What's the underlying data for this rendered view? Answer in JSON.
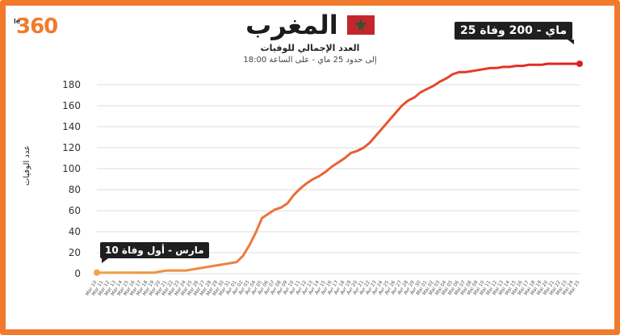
{
  "brand": {
    "logo": "360",
    "logo_prefix": "le"
  },
  "header": {
    "country": "المغرب",
    "subtitle": "العدد الإجمالي للوفيات",
    "datetime": "إلى حدود 25 ماي - على الساعة 18:00"
  },
  "colors": {
    "frame": "#f27a2c",
    "line_start": "#f3a24a",
    "line_end": "#e01f1f",
    "grid": "#dddddd",
    "callout_bg": "#1f1f1f",
    "flag_red": "#c1272d",
    "flag_star": "#006233"
  },
  "annotations": {
    "first": "10 مارس - أول وفاة",
    "last": "25 ماي - 200 وفاة"
  },
  "chart_data": {
    "type": "line",
    "title": "المغرب",
    "subtitle": "العدد الإجمالي للوفيات",
    "ylabel": "عدد الوفيات",
    "xlabel": "",
    "ylim": [
      0,
      190
    ],
    "yticks": [
      0,
      20,
      40,
      60,
      80,
      100,
      120,
      140,
      160,
      180
    ],
    "grid": true,
    "legend": "none",
    "x": [
      "Mar 10",
      "Mar 11",
      "Mar 12",
      "Mar 13",
      "Mar 14",
      "Mar 15",
      "Mar 16",
      "Mar 17",
      "Mar 18",
      "Mar 19",
      "Mar 20",
      "Mar 21",
      "Mar 22",
      "Mar 23",
      "Mar 24",
      "Mar 25",
      "Mar 26",
      "Mar 27",
      "Mar 28",
      "Mar 29",
      "Mar 30",
      "Mar 31",
      "Avr 01",
      "Avr 02",
      "Avr 03",
      "Avr 04",
      "Avr 05",
      "Avr 06",
      "Avr 07",
      "Avr 08",
      "Avr 09",
      "Avr 10",
      "Avr 11",
      "Avr 12",
      "Avr 13",
      "Avr 14",
      "Avr 15",
      "Avr 16",
      "Avr 17",
      "Avr 18",
      "Avr 19",
      "Avr 20",
      "Avr 21",
      "Avr 22",
      "Avr 23",
      "Avr 24",
      "Avr 25",
      "Avr 26",
      "Avr 27",
      "Avr 28",
      "Avr 29",
      "Avr 30",
      "Mai 01",
      "Mai 02",
      "Mai 03",
      "Mai 04",
      "Mai 05",
      "Mai 06",
      "Mai 07",
      "Mai 08",
      "Mai 09",
      "Mai 10",
      "Mai 11",
      "Mai 12",
      "Mai 13",
      "Mai 14",
      "Mai 15",
      "Mai 16",
      "Mai 17",
      "Mai 18",
      "Mai 19",
      "Mai 20",
      "Mai 21",
      "Mai 22",
      "Mai 23",
      "Mai 24",
      "Mai 25"
    ],
    "values": [
      1,
      1,
      1,
      1,
      1,
      1,
      1,
      1,
      1,
      1,
      2,
      3,
      3,
      3,
      3,
      4,
      5,
      6,
      7,
      8,
      9,
      10,
      11,
      17,
      27,
      39,
      53,
      57,
      61,
      63,
      67,
      75,
      81,
      86,
      90,
      93,
      97,
      102,
      106,
      110,
      115,
      117,
      120,
      125,
      132,
      139,
      146,
      153,
      160,
      165,
      168,
      173,
      176,
      179,
      183,
      186,
      190,
      192,
      192,
      193,
      194,
      195,
      196,
      196,
      197,
      197,
      198,
      198,
      199,
      199,
      199,
      200,
      200,
      200,
      200,
      200,
      200
    ]
  }
}
